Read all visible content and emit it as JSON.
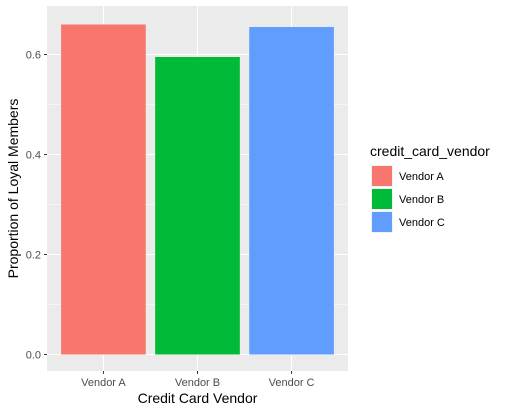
{
  "chart_data": {
    "type": "bar",
    "categories": [
      "Vendor A",
      "Vendor B",
      "Vendor C"
    ],
    "values": [
      0.66,
      0.595,
      0.655
    ],
    "colors": [
      "#F8766D",
      "#00BA38",
      "#619CFF"
    ],
    "xlabel": "Credit Card Vendor",
    "ylabel": "Proportion of Loyal Members",
    "ylim": [
      0,
      0.66
    ],
    "yticks": [
      0.0,
      0.2,
      0.4,
      0.6
    ],
    "ytick_labels": [
      "0.0",
      "0.2",
      "0.4",
      "0.6"
    ],
    "grid": true,
    "panel_background": "#EBEBEB",
    "legend": {
      "title": "credit_card_vendor",
      "position": "right",
      "entries": [
        "Vendor A",
        "Vendor B",
        "Vendor C"
      ]
    }
  }
}
